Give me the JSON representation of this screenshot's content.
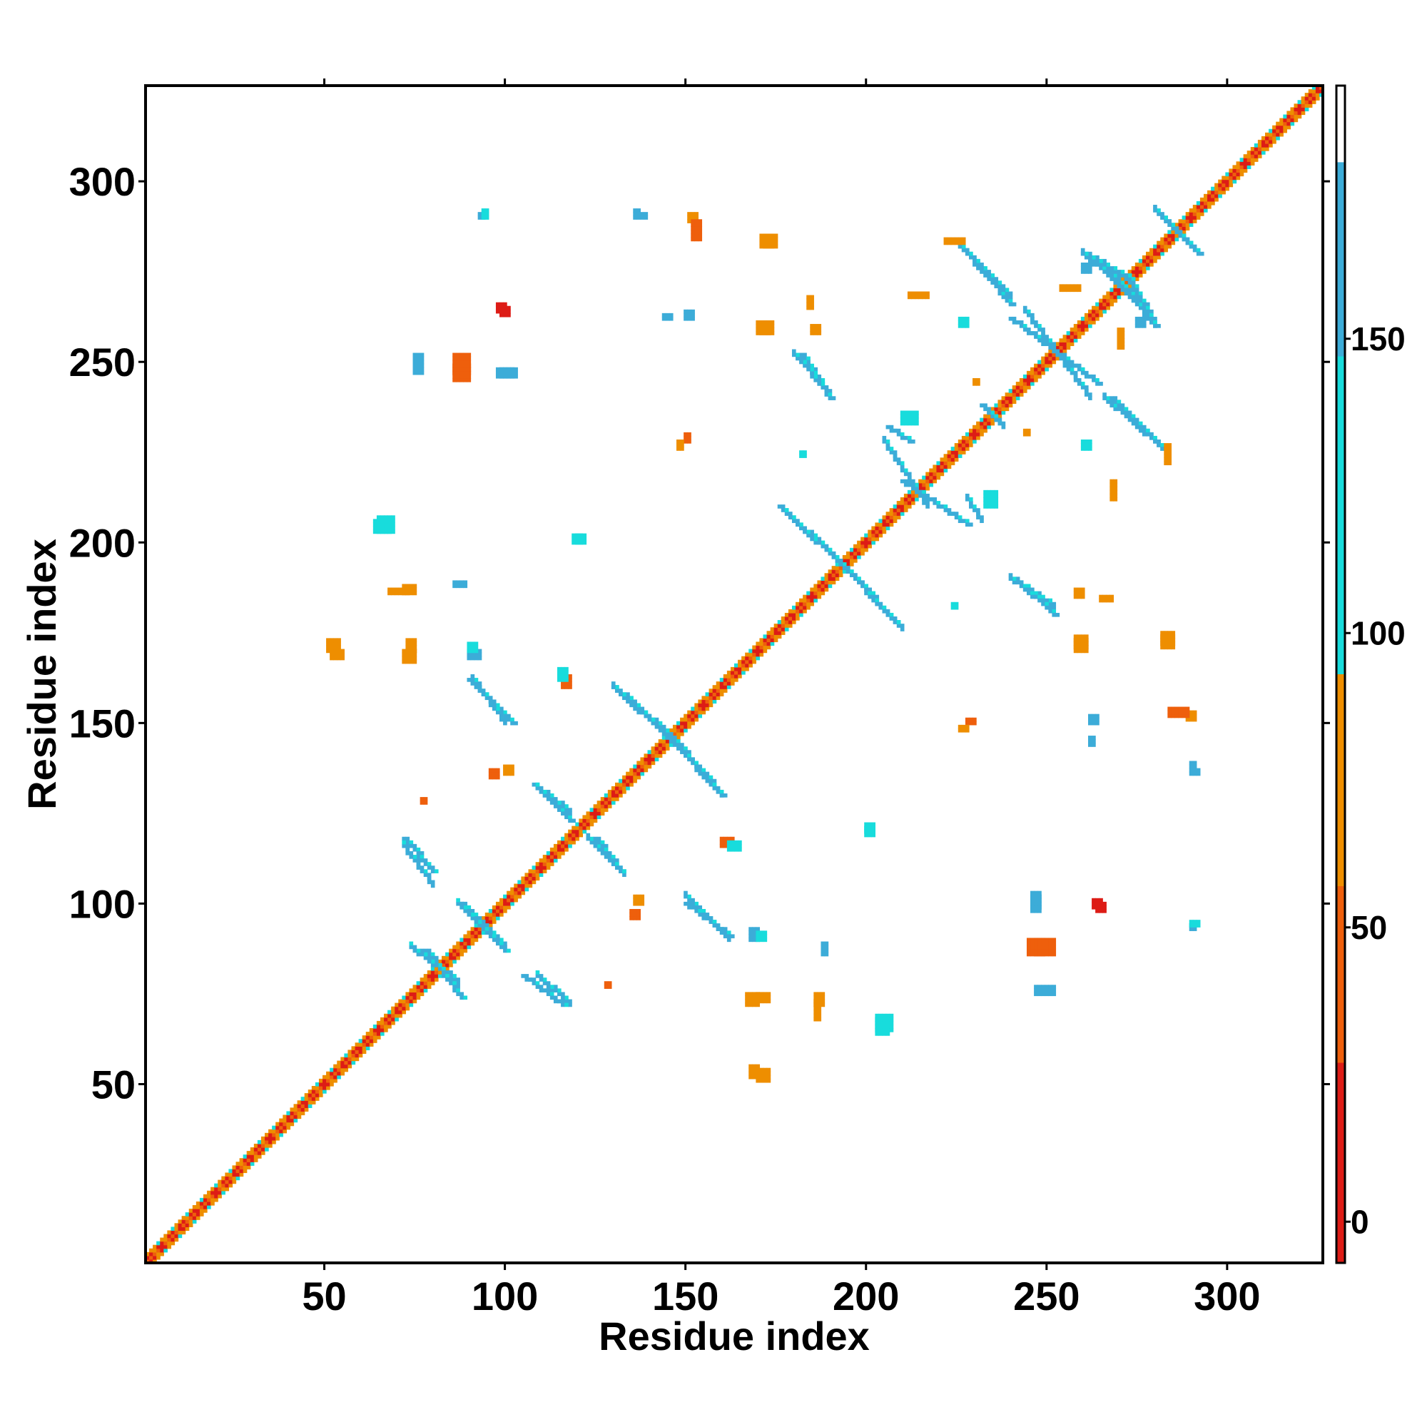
{
  "chart_data": {
    "type": "heatmap",
    "title": "",
    "xlabel": "Residue index",
    "ylabel": "Residue index",
    "xlim": [
      1,
      326
    ],
    "ylim": [
      1,
      326
    ],
    "x_ticks": [
      50,
      100,
      150,
      200,
      250,
      300
    ],
    "y_ticks": [
      50,
      100,
      150,
      200,
      250,
      300
    ],
    "grid": false,
    "legend": "colorbar-right",
    "colorbar": {
      "ticks": [
        0,
        50,
        100,
        150
      ],
      "range": [
        -7,
        193
      ],
      "bands": [
        {
          "from": -7,
          "to": 27,
          "color": "#dd1c16"
        },
        {
          "from": 27,
          "to": 57,
          "color": "#ee5f0c"
        },
        {
          "from": 57,
          "to": 93,
          "color": "#ee8e00"
        },
        {
          "from": 93,
          "to": 147,
          "color": "#18dcdc"
        },
        {
          "from": 147,
          "to": 180,
          "color": "#3cacd8"
        },
        {
          "from": 180,
          "to": 193,
          "color": "#ffffff"
        }
      ]
    },
    "contact_features": [
      {
        "kind": "diagonal",
        "from": 1,
        "to": 326,
        "color": "#ee5f0c"
      },
      {
        "kind": "segment",
        "x1": 78,
        "y1": 87,
        "x2": 88,
        "y2": 74,
        "color": "#3cacd8"
      },
      {
        "kind": "segment",
        "x1": 88,
        "y1": 100,
        "x2": 100,
        "y2": 87,
        "color": "#3cacd8"
      },
      {
        "kind": "segment",
        "x1": 72,
        "y1": 118,
        "x2": 80,
        "y2": 109,
        "color": "#3cacd8"
      },
      {
        "kind": "segment",
        "x1": 105,
        "y1": 80,
        "x2": 116,
        "y2": 72,
        "color": "#3cacd8"
      },
      {
        "kind": "segment",
        "x1": 108,
        "y1": 133,
        "x2": 118,
        "y2": 123,
        "color": "#3cacd8"
      },
      {
        "kind": "segment",
        "x1": 125,
        "y1": 118,
        "x2": 132,
        "y2": 109,
        "color": "#3cacd8"
      },
      {
        "kind": "segment",
        "x1": 130,
        "y1": 160,
        "x2": 146,
        "y2": 145,
        "color": "#3cacd8"
      },
      {
        "kind": "segment",
        "x1": 146,
        "y1": 146,
        "x2": 160,
        "y2": 130,
        "color": "#3cacd8"
      },
      {
        "kind": "segment",
        "x1": 90,
        "y1": 162,
        "x2": 102,
        "y2": 150,
        "color": "#3cacd8"
      },
      {
        "kind": "segment",
        "x1": 150,
        "y1": 100,
        "x2": 162,
        "y2": 91,
        "color": "#3cacd8"
      },
      {
        "kind": "segment",
        "x1": 176,
        "y1": 210,
        "x2": 192,
        "y2": 195,
        "color": "#3cacd8"
      },
      {
        "kind": "segment",
        "x1": 192,
        "y1": 195,
        "x2": 208,
        "y2": 178,
        "color": "#3cacd8"
      },
      {
        "kind": "segment",
        "x1": 182,
        "y1": 252,
        "x2": 190,
        "y2": 240,
        "color": "#3cacd8"
      },
      {
        "kind": "segment",
        "x1": 206,
        "y1": 232,
        "x2": 212,
        "y2": 228,
        "color": "#3cacd8"
      },
      {
        "kind": "segment",
        "x1": 210,
        "y1": 217,
        "x2": 228,
        "y2": 205,
        "color": "#3cacd8"
      },
      {
        "kind": "segment",
        "x1": 226,
        "y1": 282,
        "x2": 240,
        "y2": 266,
        "color": "#3cacd8"
      },
      {
        "kind": "segment",
        "x1": 232,
        "y1": 238,
        "x2": 236,
        "y2": 234,
        "color": "#3cacd8"
      },
      {
        "kind": "segment",
        "x1": 242,
        "y1": 189,
        "x2": 252,
        "y2": 180,
        "color": "#3cacd8"
      },
      {
        "kind": "segment",
        "x1": 240,
        "y1": 262,
        "x2": 264,
        "y2": 244,
        "color": "#3cacd8"
      },
      {
        "kind": "segment",
        "x1": 260,
        "y1": 280,
        "x2": 274,
        "y2": 268,
        "color": "#3cacd8"
      },
      {
        "kind": "segment",
        "x1": 272,
        "y1": 274,
        "x2": 280,
        "y2": 260,
        "color": "#3cacd8"
      },
      {
        "kind": "segment",
        "x1": 268,
        "y1": 240,
        "x2": 282,
        "y2": 226,
        "color": "#3cacd8"
      },
      {
        "kind": "segment",
        "x1": 282,
        "y1": 290,
        "x2": 292,
        "y2": 280,
        "color": "#3cacd8"
      },
      {
        "kind": "blob",
        "x": 86,
        "y": 245,
        "w": 5,
        "h": 5,
        "color": "#ee5f0c"
      },
      {
        "kind": "blob",
        "x": 98,
        "y": 246,
        "w": 5,
        "h": 3,
        "color": "#3cacd8"
      },
      {
        "kind": "blob",
        "x": 75,
        "y": 247,
        "w": 3,
        "h": 3,
        "color": "#3cacd8"
      },
      {
        "kind": "blob",
        "x": 98,
        "y": 264,
        "w": 3,
        "h": 3,
        "color": "#dd1c16"
      },
      {
        "kind": "blob",
        "x": 64,
        "y": 203,
        "w": 5,
        "h": 4,
        "color": "#18dcdc"
      },
      {
        "kind": "blob",
        "x": 119,
        "y": 200,
        "w": 3,
        "h": 3,
        "color": "#18dcdc"
      },
      {
        "kind": "blob",
        "x": 52,
        "y": 168,
        "w": 4,
        "h": 3,
        "color": "#ee8e00"
      },
      {
        "kind": "blob",
        "x": 72,
        "y": 167,
        "w": 4,
        "h": 4,
        "color": "#ee8e00"
      },
      {
        "kind": "blob",
        "x": 90,
        "y": 168,
        "w": 4,
        "h": 3,
        "color": "#3cacd8"
      },
      {
        "kind": "blob",
        "x": 170,
        "y": 258,
        "w": 4,
        "h": 4,
        "color": "#ee8e00"
      },
      {
        "kind": "blob",
        "x": 171,
        "y": 282,
        "w": 4,
        "h": 4,
        "color": "#ee8e00"
      },
      {
        "kind": "blob",
        "x": 170,
        "y": 90,
        "w": 3,
        "h": 3,
        "color": "#18dcdc"
      },
      {
        "kind": "blob",
        "x": 170,
        "y": 73,
        "w": 4,
        "h": 3,
        "color": "#ee8e00"
      },
      {
        "kind": "blob",
        "x": 170,
        "y": 51,
        "w": 4,
        "h": 4,
        "color": "#ee8e00"
      },
      {
        "kind": "blob",
        "x": 203,
        "y": 65,
        "w": 5,
        "h": 5,
        "color": "#18dcdc"
      },
      {
        "kind": "blob",
        "x": 200,
        "y": 120,
        "w": 3,
        "h": 3,
        "color": "#18dcdc"
      },
      {
        "kind": "blob",
        "x": 246,
        "y": 99,
        "w": 3,
        "h": 5,
        "color": "#3cacd8"
      },
      {
        "kind": "blob",
        "x": 247,
        "y": 86,
        "w": 6,
        "h": 5,
        "color": "#ee5f0c"
      },
      {
        "kind": "blob",
        "x": 263,
        "y": 99,
        "w": 3,
        "h": 3,
        "color": "#dd1c16"
      },
      {
        "kind": "blob",
        "x": 258,
        "y": 171,
        "w": 4,
        "h": 4,
        "color": "#ee8e00"
      },
      {
        "kind": "blob",
        "x": 282,
        "y": 172,
        "w": 4,
        "h": 4,
        "color": "#ee8e00"
      },
      {
        "kind": "blob",
        "x": 233,
        "y": 210,
        "w": 4,
        "h": 5,
        "color": "#18dcdc"
      },
      {
        "kind": "blob",
        "x": 182,
        "y": 224,
        "w": 2,
        "h": 2,
        "color": "#18dcdc"
      },
      {
        "kind": "blob",
        "x": 93,
        "y": 290,
        "w": 2,
        "h": 2,
        "color": "#3cacd8"
      },
      {
        "kind": "blob",
        "x": 138,
        "y": 290,
        "w": 2,
        "h": 2,
        "color": "#3cacd8"
      },
      {
        "kind": "blob",
        "x": 151,
        "y": 289,
        "w": 3,
        "h": 3,
        "color": "#ee8e00"
      },
      {
        "kind": "blob",
        "x": 88,
        "y": 188,
        "w": 2,
        "h": 2,
        "color": "#3cacd8"
      },
      {
        "kind": "blob",
        "x": 188,
        "y": 86,
        "w": 2,
        "h": 2,
        "color": "#3cacd8"
      },
      {
        "kind": "blob",
        "x": 290,
        "y": 94,
        "w": 3,
        "h": 2,
        "color": "#18dcdc"
      },
      {
        "kind": "blob",
        "x": 290,
        "y": 136,
        "w": 3,
        "h": 2,
        "color": "#3cacd8"
      },
      {
        "kind": "blob",
        "x": 284,
        "y": 152,
        "w": 6,
        "h": 3,
        "color": "#ee5f0c"
      },
      {
        "kind": "blob",
        "x": 228,
        "y": 150,
        "w": 3,
        "h": 2,
        "color": "#ee5f0c"
      },
      {
        "kind": "blob",
        "x": 262,
        "y": 150,
        "w": 3,
        "h": 3,
        "color": "#3cacd8"
      },
      {
        "kind": "blob",
        "x": 250,
        "y": 75,
        "w": 3,
        "h": 3,
        "color": "#3cacd8"
      },
      {
        "kind": "blob",
        "x": 160,
        "y": 116,
        "w": 4,
        "h": 3,
        "color": "#ee5f0c"
      },
      {
        "kind": "blob",
        "x": 115,
        "y": 162,
        "w": 3,
        "h": 4,
        "color": "#18dcdc"
      },
      {
        "kind": "blob",
        "x": 68,
        "y": 186,
        "w": 6,
        "h": 2,
        "color": "#ee8e00"
      },
      {
        "kind": "blob",
        "x": 186,
        "y": 72,
        "w": 3,
        "h": 4,
        "color": "#ee8e00"
      },
      {
        "kind": "blob",
        "x": 265,
        "y": 184,
        "w": 4,
        "h": 2,
        "color": "#ee8e00"
      },
      {
        "kind": "blob",
        "x": 185,
        "y": 258,
        "w": 3,
        "h": 3,
        "color": "#ee8e00"
      },
      {
        "kind": "blob",
        "x": 148,
        "y": 226,
        "w": 2,
        "h": 3,
        "color": "#ee8e00"
      },
      {
        "kind": "blob",
        "x": 260,
        "y": 226,
        "w": 3,
        "h": 3,
        "color": "#18dcdc"
      },
      {
        "kind": "blob",
        "x": 244,
        "y": 230,
        "w": 2,
        "h": 2,
        "color": "#ee8e00"
      },
      {
        "kind": "blob",
        "x": 144,
        "y": 262,
        "w": 3,
        "h": 2,
        "color": "#3cacd8"
      },
      {
        "kind": "blob",
        "x": 128,
        "y": 77,
        "w": 2,
        "h": 2,
        "color": "#ee5f0c"
      },
      {
        "kind": "blob",
        "x": 135,
        "y": 96,
        "w": 3,
        "h": 3,
        "color": "#ee5f0c"
      },
      {
        "kind": "blob",
        "x": 100,
        "y": 136,
        "w": 3,
        "h": 3,
        "color": "#ee8e00"
      },
      {
        "kind": "blob",
        "x": 283,
        "y": 222,
        "w": 2,
        "h": 6,
        "color": "#ee8e00"
      },
      {
        "kind": "blob",
        "x": 275,
        "y": 260,
        "w": 3,
        "h": 3,
        "color": "#3cacd8"
      },
      {
        "kind": "blob",
        "x": 212,
        "y": 268,
        "w": 6,
        "h": 2,
        "color": "#ee8e00"
      },
      {
        "kind": "blob",
        "x": 254,
        "y": 270,
        "w": 6,
        "h": 2,
        "color": "#ee8e00"
      }
    ]
  }
}
